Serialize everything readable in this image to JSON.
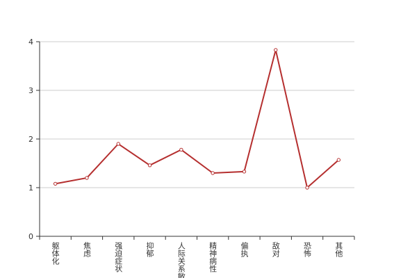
{
  "chart_data": {
    "type": "line",
    "categories": [
      "躯体化",
      "焦虑",
      "强迫症状",
      "抑郁",
      "人际关系敏感",
      "精神病性",
      "偏执",
      "敌对",
      "恐怖",
      "其他"
    ],
    "series": [
      {
        "color": "#b52f2f",
        "values": [
          1.08,
          1.2,
          1.9,
          1.46,
          1.78,
          1.3,
          1.33,
          3.83,
          1.0,
          1.57
        ]
      }
    ],
    "ylim": [
      0,
      4
    ],
    "yticks": [
      0,
      1,
      2,
      3,
      4
    ],
    "grid": true
  }
}
